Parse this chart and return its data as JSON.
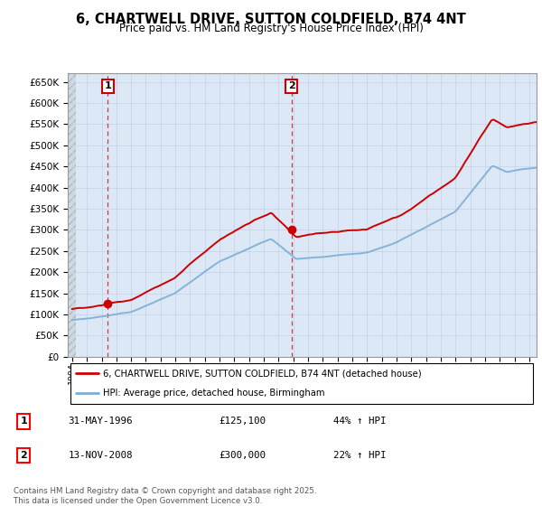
{
  "title": "6, CHARTWELL DRIVE, SUTTON COLDFIELD, B74 4NT",
  "subtitle": "Price paid vs. HM Land Registry's House Price Index (HPI)",
  "legend_entry1": "6, CHARTWELL DRIVE, SUTTON COLDFIELD, B74 4NT (detached house)",
  "legend_entry2": "HPI: Average price, detached house, Birmingham",
  "transaction1_label": "1",
  "transaction1_date": "31-MAY-1996",
  "transaction1_price": "£125,100",
  "transaction1_hpi": "44% ↑ HPI",
  "transaction2_label": "2",
  "transaction2_date": "13-NOV-2008",
  "transaction2_price": "£300,000",
  "transaction2_hpi": "22% ↑ HPI",
  "footnote": "Contains HM Land Registry data © Crown copyright and database right 2025.\nThis data is licensed under the Open Government Licence v3.0.",
  "vline1_x": 1996.42,
  "vline2_x": 2008.87,
  "marker1_x": 1996.42,
  "marker1_y": 125100,
  "marker2_x": 2008.87,
  "marker2_y": 300000,
  "ylim": [
    0,
    670000
  ],
  "xlim": [
    1993.7,
    2025.5
  ],
  "price_color": "#cc0000",
  "hpi_color": "#7bafd4",
  "grid_color": "#c8d4e8",
  "bg_color": "#dce8f5"
}
